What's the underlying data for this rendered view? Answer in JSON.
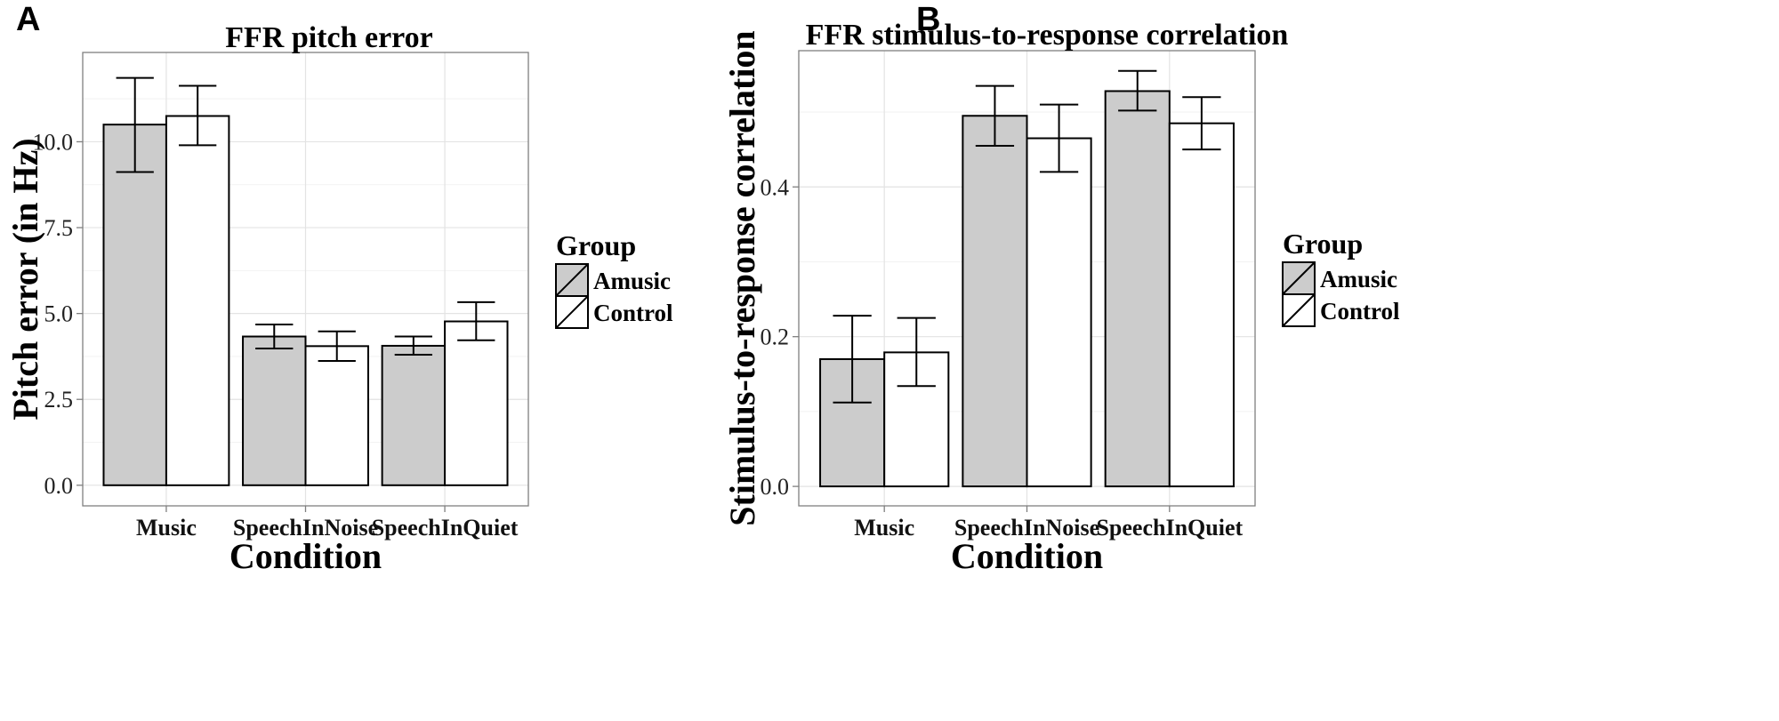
{
  "figure": {
    "panels": [
      "A",
      "B"
    ]
  },
  "chart_data": [
    {
      "type": "bar",
      "panel": "A",
      "title": "FFR pitch error",
      "xlabel": "Condition",
      "ylabel": "Pitch error (in Hz)",
      "ylim": [
        -0.6,
        12.6
      ],
      "yticks": [
        0.0,
        2.5,
        5.0,
        7.5,
        10.0
      ],
      "ytick_labels": [
        "0.0",
        "2.5",
        "5.0",
        "7.5",
        "10.0"
      ],
      "grid": true,
      "categories": [
        "Music",
        "SpeechInNoise",
        "SpeechInQuiet"
      ],
      "series": [
        {
          "name": "Amusic",
          "color": "#cccccc",
          "values": [
            10.5,
            4.33,
            4.06
          ],
          "err_low": [
            9.12,
            3.98,
            3.8
          ],
          "err_high": [
            11.86,
            4.68,
            4.33
          ]
        },
        {
          "name": "Control",
          "color": "#ffffff",
          "values": [
            10.75,
            4.05,
            4.77
          ],
          "err_low": [
            9.9,
            3.62,
            4.22
          ],
          "err_high": [
            11.63,
            4.48,
            5.33
          ]
        }
      ],
      "legend": {
        "title": "Group",
        "position": "right"
      }
    },
    {
      "type": "bar",
      "panel": "B",
      "title": "FFR stimulus-to-response correlation",
      "xlabel": "Condition",
      "ylabel": "Stimulus-to-response correlation",
      "ylim": [
        -0.026,
        0.582
      ],
      "yticks": [
        0.0,
        0.2,
        0.4
      ],
      "ytick_labels": [
        "0.0",
        "0.2",
        "0.4"
      ],
      "grid": true,
      "categories": [
        "Music",
        "SpeechInNoise",
        "SpeechInQuiet"
      ],
      "series": [
        {
          "name": "Amusic",
          "color": "#cccccc",
          "values": [
            0.17,
            0.495,
            0.528
          ],
          "err_low": [
            0.112,
            0.455,
            0.502
          ],
          "err_high": [
            0.228,
            0.535,
            0.555
          ]
        },
        {
          "name": "Control",
          "color": "#ffffff",
          "values": [
            0.179,
            0.465,
            0.485
          ],
          "err_low": [
            0.134,
            0.42,
            0.45
          ],
          "err_high": [
            0.225,
            0.51,
            0.52
          ]
        }
      ],
      "legend": {
        "title": "Group",
        "position": "right"
      }
    }
  ]
}
